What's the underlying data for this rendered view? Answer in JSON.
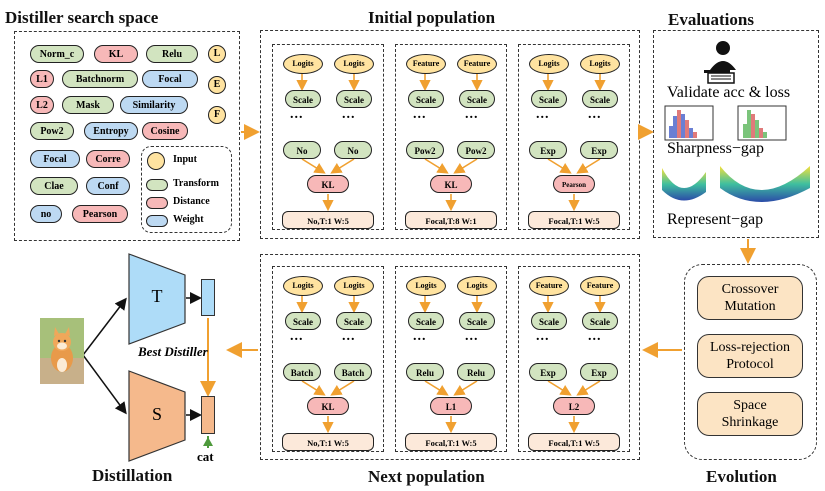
{
  "titles": {
    "search_space": "Distiller search space",
    "initial_population": "Initial population",
    "evaluations": "Evaluations",
    "next_population": "Next population",
    "distillation": "Distillation",
    "evolution": "Evolution"
  },
  "search_space": {
    "rows": [
      [
        {
          "label": "Norm_c",
          "color": "#D2E4C0"
        },
        {
          "label": "KL",
          "color": "#F7B8B8"
        },
        {
          "label": "Relu",
          "color": "#D2E4C0"
        }
      ],
      [
        {
          "label": "L1",
          "color": "#F7B8B8"
        },
        {
          "label": "Batchnorm",
          "color": "#D2E4C0"
        },
        {
          "label": "Focal",
          "color": "#BDD9F2"
        }
      ],
      [
        {
          "label": "L2",
          "color": "#F7B8B8"
        },
        {
          "label": "Mask",
          "color": "#D2E4C0"
        },
        {
          "label": "Similarity",
          "color": "#BDD9F2"
        }
      ],
      [
        {
          "label": "Pow2",
          "color": "#D2E4C0"
        },
        {
          "label": "Entropy",
          "color": "#BDD9F2"
        },
        {
          "label": "Cosine",
          "color": "#F7B8B8"
        }
      ],
      [
        {
          "label": "Focal",
          "color": "#BDD9F2"
        },
        {
          "label": "Corre",
          "color": "#F7B8B8"
        }
      ],
      [
        {
          "label": "Clae",
          "color": "#D2E4C0"
        },
        {
          "label": "Conf",
          "color": "#BDD9F2"
        }
      ],
      [
        {
          "label": "no",
          "color": "#BDD9F2"
        },
        {
          "label": "Pearson",
          "color": "#F7B8B8"
        }
      ]
    ],
    "inputs": [
      "L",
      "E",
      "F"
    ],
    "legend": {
      "input": "Input",
      "transform": "Transform",
      "distance": "Distance",
      "weight": "Weight"
    }
  },
  "colors": {
    "input": "#FFE3A0",
    "transform": "#D2E4C0",
    "distance": "#F7B8B8",
    "weight": "#BDD9F2",
    "weight_label": "#FCE9DA",
    "arrow": "#F0A030",
    "teacher": "#AEDCF8",
    "student": "#F5B98C",
    "evolution": "#FCE4C4"
  },
  "initial_population": [
    {
      "inputs": [
        "Logits",
        "Logits"
      ],
      "transforms1": [
        "Scale",
        "Scale"
      ],
      "dots": "...",
      "transforms2": [
        "No",
        "No"
      ],
      "distance": "KL",
      "weight": "No,T:1 W:5"
    },
    {
      "inputs": [
        "Feature",
        "Feature"
      ],
      "transforms1": [
        "Scale",
        "Scale"
      ],
      "dots": "...",
      "transforms2": [
        "Pow2",
        "Pow2"
      ],
      "distance": "KL",
      "weight": "Focal,T:8 W:1"
    },
    {
      "inputs": [
        "Logits",
        "Logits"
      ],
      "transforms1": [
        "Scale",
        "Scale"
      ],
      "dots": "...",
      "transforms2": [
        "Exp",
        "Exp"
      ],
      "distance": "Pearson",
      "weight": "Focal,T:1 W:5"
    }
  ],
  "next_population": [
    {
      "inputs": [
        "Logits",
        "Logits"
      ],
      "transforms1": [
        "Scale",
        "Scale"
      ],
      "dots": "...",
      "transforms2": [
        "Batch",
        "Batch"
      ],
      "distance": "KL",
      "weight": "No,T:1 W:5"
    },
    {
      "inputs": [
        "Logits",
        "Logits"
      ],
      "transforms1": [
        "Scale",
        "Scale"
      ],
      "dots": "...",
      "transforms2": [
        "Relu",
        "Relu"
      ],
      "distance": "L1",
      "weight": "Focal,T:1 W:5"
    },
    {
      "inputs": [
        "Feature",
        "Feature"
      ],
      "transforms1": [
        "Scale",
        "Scale"
      ],
      "dots": "...",
      "transforms2": [
        "Exp",
        "Exp"
      ],
      "distance": "L2",
      "weight": "Focal,T:1 W:5"
    }
  ],
  "evaluations": {
    "validate": "Validate acc & loss",
    "sharpness": "Sharpness−gap",
    "represent": "Represent−gap"
  },
  "evolution": {
    "steps": [
      [
        "Crossover",
        "Mutation"
      ],
      [
        "Loss-rejection",
        "Protocol"
      ],
      [
        "Space",
        "Shrinkage"
      ]
    ]
  },
  "distillation": {
    "teacher": "T",
    "student": "S",
    "best_distiller": "Best Distiller",
    "label": "cat"
  }
}
